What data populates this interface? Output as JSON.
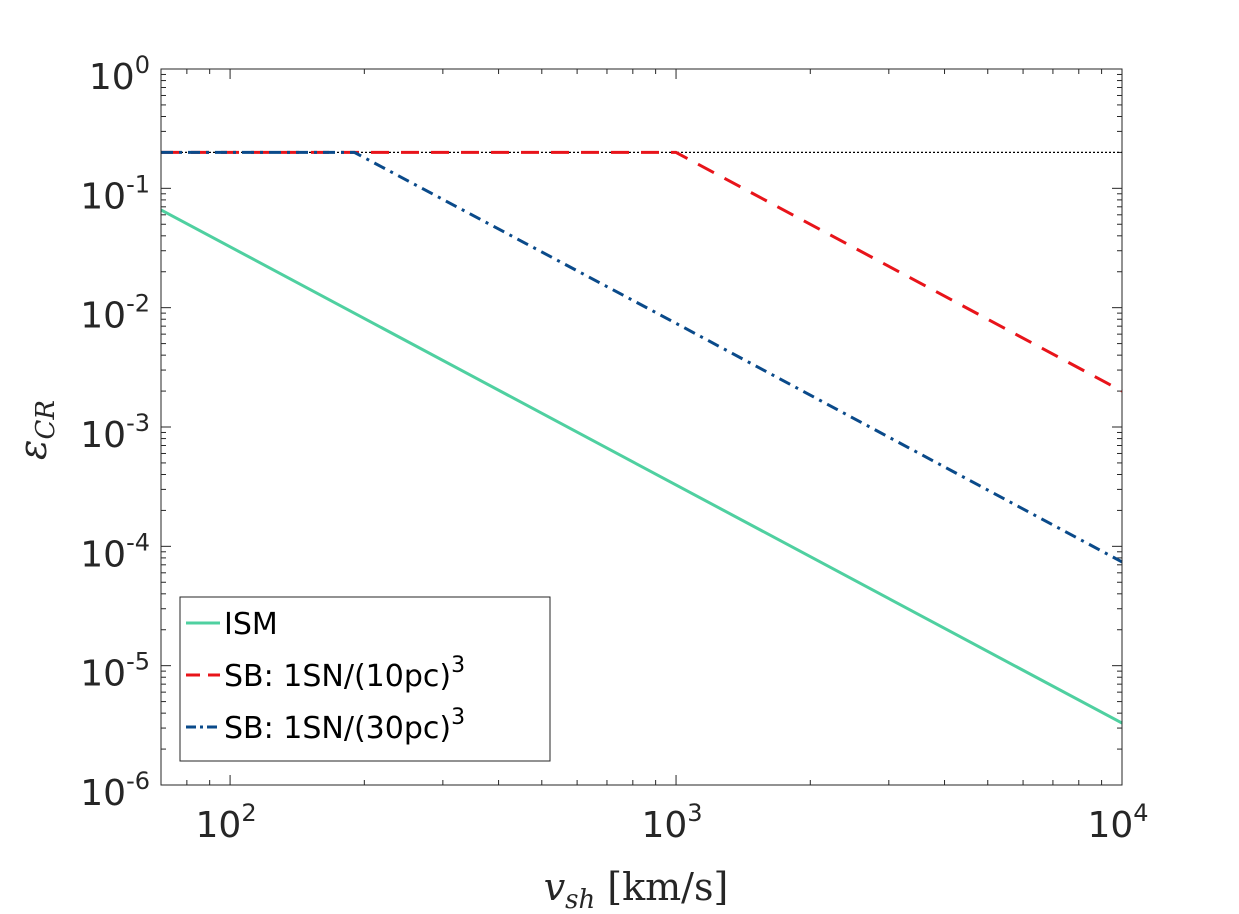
{
  "chart_data": {
    "type": "line",
    "scale": "log-log",
    "xlabel": {
      "symbol": "v",
      "subscript": "sh",
      "unit": "[km/s]"
    },
    "ylabel": {
      "symbol": "ε",
      "subscript": "CR"
    },
    "xlim": [
      70,
      10000
    ],
    "ylim": [
      1e-06,
      1
    ],
    "x_ticks": [
      {
        "value": 100,
        "base": "10",
        "exp": "2"
      },
      {
        "value": 1000,
        "base": "10",
        "exp": "3"
      },
      {
        "value": 10000,
        "base": "10",
        "exp": "4"
      }
    ],
    "y_ticks": [
      {
        "value": 1,
        "base": "10",
        "exp": "0"
      },
      {
        "value": 0.1,
        "base": "10",
        "exp": "-1"
      },
      {
        "value": 0.01,
        "base": "10",
        "exp": "-2"
      },
      {
        "value": 0.001,
        "base": "10",
        "exp": "-3"
      },
      {
        "value": 0.0001,
        "base": "10",
        "exp": "-4"
      },
      {
        "value": 1e-05,
        "base": "10",
        "exp": "-5"
      },
      {
        "value": 1e-06,
        "base": "10",
        "exp": "-6"
      }
    ],
    "reference_line": {
      "y": 0.2,
      "color": "#000000",
      "style": "dotted"
    },
    "series": [
      {
        "name": "ISM",
        "color": "#4fd0a0",
        "style": "solid",
        "x": [
          70,
          10000
        ],
        "y": [
          0.066,
          3.3e-06
        ]
      },
      {
        "name": "SB: 1SN/(10pc)",
        "superscript": "3",
        "color": "#e8141a",
        "style": "dashed",
        "x": [
          70,
          1000,
          10000
        ],
        "y": [
          0.2,
          0.2,
          0.002
        ]
      },
      {
        "name": "SB: 1SN/(30pc)",
        "superscript": "3",
        "color": "#0a4a8a",
        "style": "dashdot",
        "x": [
          70,
          190,
          1000,
          10000
        ],
        "y": [
          0.2,
          0.2,
          0.0074,
          7.4e-05
        ]
      }
    ],
    "legend_position": "bottom-left"
  }
}
